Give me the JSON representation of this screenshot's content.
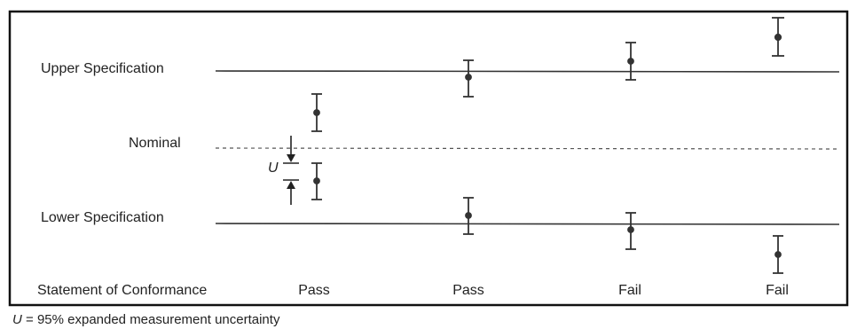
{
  "labels": {
    "upper_spec": "Upper Specification",
    "nominal": "Nominal",
    "lower_spec": "Lower Specification",
    "statement": "Statement of Conformance",
    "u_symbol": "U",
    "footnote_symbol": "U",
    "footnote_text": " = 95% expanded measurement uncertainty"
  },
  "statements": [
    "Pass",
    "Pass",
    "Fail",
    "Fail"
  ],
  "colors": {
    "ink": "#222222",
    "line": "#333333",
    "frame": "#111111",
    "nominal_line": "#555555"
  }
}
